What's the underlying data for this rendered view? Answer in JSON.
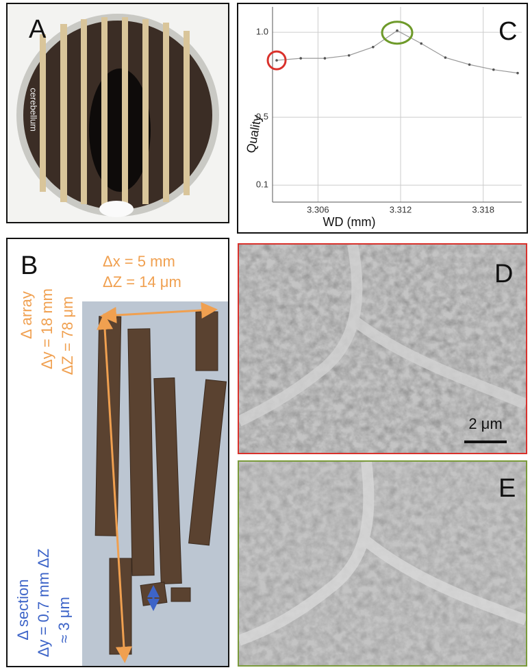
{
  "panel_a": {
    "label": "A",
    "photo_text": "cerebellum"
  },
  "panel_b": {
    "label": "B",
    "top_texts": [
      "Δx = 5 mm",
      "ΔZ = 14 μm"
    ],
    "array_texts": [
      "Δ array",
      "Δy = 18 mm",
      "ΔZ = 78 μm"
    ],
    "section_texts": [
      "Δ section",
      "Δy = 0.7 mm ΔZ",
      "≈ 3 μm"
    ]
  },
  "chart_data": {
    "type": "line",
    "label": "C",
    "xlabel": "WD (mm)",
    "ylabel": "Quality",
    "x": [
      3.303,
      3.30475,
      3.3065,
      3.30825,
      3.31,
      3.31175,
      3.3135,
      3.31525,
      3.317,
      3.31875,
      3.3205
    ],
    "values": [
      0.835,
      0.847,
      0.847,
      0.864,
      0.913,
      1.01,
      0.934,
      0.851,
      0.81,
      0.78,
      0.76
    ],
    "color": "#999999",
    "xlim": [
      3.3027,
      3.3208
    ],
    "xticks": [
      3.306,
      3.312,
      3.318
    ],
    "ylim": [
      0,
      1.15
    ],
    "yticks": [
      0.1,
      0.5,
      {
        "value": 1,
        "label": "1.0"
      }
    ],
    "grid": true
  },
  "panel_d": {
    "label": "D",
    "scale_bar": "2 μm"
  },
  "panel_e": {
    "label": "E"
  }
}
